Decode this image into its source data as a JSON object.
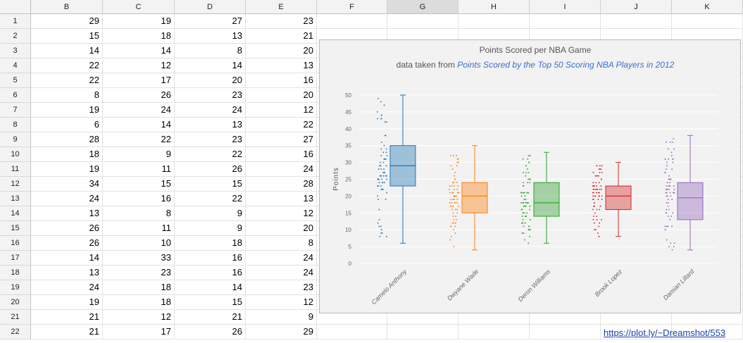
{
  "sheet": {
    "columns": [
      "B",
      "C",
      "D",
      "E",
      "F",
      "G",
      "H",
      "I",
      "J",
      "K"
    ],
    "selected_column": "G",
    "rows": [
      {
        "n": "1",
        "b": "29",
        "c": "19",
        "d": "27",
        "e": "23"
      },
      {
        "n": "2",
        "b": "15",
        "c": "18",
        "d": "13",
        "e": "21"
      },
      {
        "n": "3",
        "b": "14",
        "c": "14",
        "d": "8",
        "e": "20"
      },
      {
        "n": "4",
        "b": "22",
        "c": "12",
        "d": "14",
        "e": "13"
      },
      {
        "n": "5",
        "b": "22",
        "c": "17",
        "d": "20",
        "e": "16"
      },
      {
        "n": "6",
        "b": "8",
        "c": "26",
        "d": "23",
        "e": "20"
      },
      {
        "n": "7",
        "b": "19",
        "c": "24",
        "d": "24",
        "e": "12"
      },
      {
        "n": "8",
        "b": "6",
        "c": "14",
        "d": "13",
        "e": "22"
      },
      {
        "n": "9",
        "b": "28",
        "c": "22",
        "d": "23",
        "e": "27"
      },
      {
        "n": "10",
        "b": "18",
        "c": "9",
        "d": "22",
        "e": "16"
      },
      {
        "n": "11",
        "b": "19",
        "c": "11",
        "d": "26",
        "e": "24"
      },
      {
        "n": "12",
        "b": "34",
        "c": "15",
        "d": "15",
        "e": "28"
      },
      {
        "n": "13",
        "b": "24",
        "c": "16",
        "d": "22",
        "e": "13"
      },
      {
        "n": "14",
        "b": "13",
        "c": "8",
        "d": "9",
        "e": "12"
      },
      {
        "n": "15",
        "b": "26",
        "c": "11",
        "d": "9",
        "e": "20"
      },
      {
        "n": "16",
        "b": "26",
        "c": "10",
        "d": "18",
        "e": "8"
      },
      {
        "n": "17",
        "b": "14",
        "c": "33",
        "d": "16",
        "e": "24"
      },
      {
        "n": "18",
        "b": "13",
        "c": "23",
        "d": "16",
        "e": "24"
      },
      {
        "n": "19",
        "b": "24",
        "c": "18",
        "d": "14",
        "e": "23"
      },
      {
        "n": "20",
        "b": "19",
        "c": "18",
        "d": "15",
        "e": "12"
      },
      {
        "n": "21",
        "b": "21",
        "c": "12",
        "d": "21",
        "e": "9"
      },
      {
        "n": "22",
        "b": "21",
        "c": "17",
        "d": "26",
        "e": "29"
      }
    ]
  },
  "chart": {
    "title": "Points Scored per NBA Game",
    "subtitle_prefix": "data taken from ",
    "subtitle_link": "Points Scored by the Top 50 Scoring NBA Players in 2012"
  },
  "chart_data": {
    "type": "box",
    "title": "Points Scored per NBA Game",
    "subtitle": "data taken from Points Scored by the Top 50 Scoring NBA Players in 2012",
    "ylabel": "Points",
    "ylim": [
      0,
      50
    ],
    "yticks": [
      0,
      5,
      10,
      15,
      20,
      25,
      30,
      35,
      40,
      45,
      50
    ],
    "categories": [
      "Camelo Anthony",
      "Dwyane Wade",
      "Deron Williams",
      "Brook Lopez",
      "Damian Lillard"
    ],
    "series": [
      {
        "name": "Camelo Anthony",
        "color": "#1f77b4",
        "min": 6,
        "q1": 23,
        "median": 29,
        "q3": 35,
        "max": 50
      },
      {
        "name": "Dwyane Wade",
        "color": "#ff7f0e",
        "min": 4,
        "q1": 15,
        "median": 20,
        "q3": 24,
        "max": 35
      },
      {
        "name": "Deron Williams",
        "color": "#2ca02c",
        "min": 6,
        "q1": 14,
        "median": 18,
        "q3": 24,
        "max": 33
      },
      {
        "name": "Brook Lopez",
        "color": "#d62728",
        "min": 8,
        "q1": 16,
        "median": 20,
        "q3": 23,
        "max": 30
      },
      {
        "name": "Damian Lillard",
        "color": "#9467bd",
        "min": 4,
        "q1": 13,
        "median": 19.5,
        "q3": 24,
        "max": 38
      }
    ],
    "points_shown": true,
    "grid": true
  },
  "footer": {
    "link": "https://plot.ly/~Dreamshot/553"
  }
}
